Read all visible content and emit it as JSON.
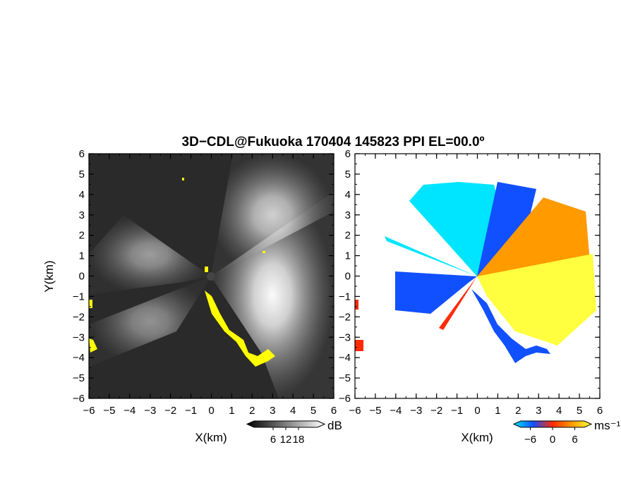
{
  "title": "3D−CDL@Fukuoka 170404 145823 PPI EL=00.0º",
  "colors": {
    "panel_background": "#2a2a2a",
    "flag_yellow": "#ffff00",
    "velocity_negative_far": "#00e5ff",
    "velocity_negative": "#1150ff",
    "velocity_zero": "#ff2a00",
    "velocity_positive": "#ff9a00",
    "velocity_positive_far": "#ffff40"
  },
  "chart_data": [
    {
      "type": "heatmap",
      "name": "",
      "quantity": "SNR",
      "xlabel": "X(km)",
      "ylabel": "Y(km)",
      "xlim": [
        -6,
        6
      ],
      "ylim": [
        -6,
        6
      ],
      "xticks": [
        -6,
        -5,
        -4,
        -3,
        -2,
        -1,
        0,
        1,
        2,
        3,
        4,
        5,
        6
      ],
      "yticks": [
        -6,
        -5,
        -4,
        -3,
        -2,
        -1,
        0,
        1,
        2,
        3,
        4,
        5,
        6
      ],
      "xtick_labels": [
        "−6",
        "−5",
        "−4",
        "−3",
        "−2",
        "−1",
        "0",
        "1",
        "2",
        "3",
        "4",
        "5",
        "6"
      ],
      "ytick_labels": [
        "−6",
        "−5",
        "−4",
        "−3",
        "−2",
        "−1",
        "0",
        "1",
        "2",
        "3",
        "4",
        "5",
        "6"
      ],
      "colorbar": {
        "unit": "dB",
        "ticks": [
          6,
          12,
          18
        ],
        "tick_labels": [
          "6",
          "12",
          "18"
        ],
        "colors": [
          "#000000",
          "#ffffff"
        ]
      }
    },
    {
      "type": "heatmap",
      "name": "",
      "quantity": "Doppler velocity",
      "xlabel": "X(km)",
      "xlim": [
        -6,
        6
      ],
      "ylim": [
        -6,
        6
      ],
      "xticks": [
        -6,
        -5,
        -4,
        -3,
        -2,
        -1,
        0,
        1,
        2,
        3,
        4,
        5,
        6
      ],
      "yticks": [
        -6,
        -5,
        -4,
        -3,
        -2,
        -1,
        0,
        1,
        2,
        3,
        4,
        5,
        6
      ],
      "xtick_labels": [
        "−6",
        "−5",
        "−4",
        "−3",
        "−2",
        "−1",
        "0",
        "1",
        "2",
        "3",
        "4",
        "5",
        "6"
      ],
      "ytick_labels": [
        "−6",
        "−5",
        "−4",
        "−3",
        "−2",
        "−1",
        "0",
        "1",
        "2",
        "3",
        "4",
        "5",
        "6"
      ],
      "colorbar": {
        "unit": "ms⁻¹",
        "ticks": [
          -6,
          0,
          6
        ],
        "tick_labels": [
          "−6",
          "0",
          "6"
        ],
        "colors": [
          "#00e5ff",
          "#1150ff",
          "#ff2a00",
          "#ff9a00",
          "#ffff40"
        ]
      }
    }
  ]
}
